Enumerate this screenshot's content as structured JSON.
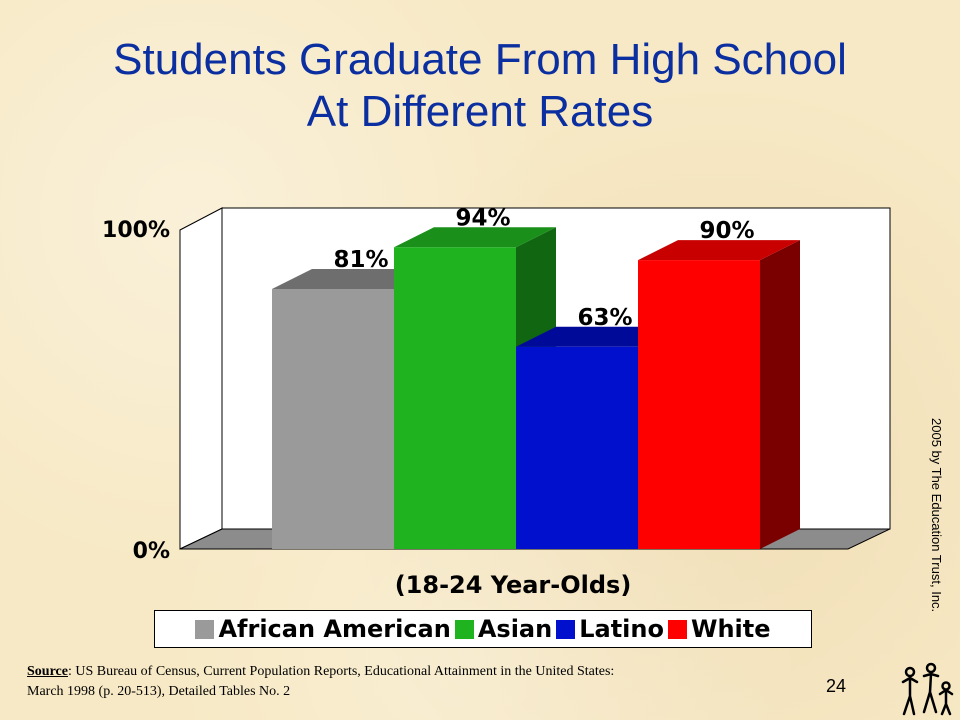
{
  "slide": {
    "title_line1": "Students Graduate From High School",
    "title_line2": "At Different Rates",
    "page_number": "24",
    "copyright": "2005  by The Education Trust, Inc.",
    "source_label": "Source",
    "source_text": ": US Bureau of Census, Current Population Reports, Educational Attainment in the United States:",
    "source_text_line2": "March 1998 (p. 20-513), Detailed Tables No. 2",
    "logo_icon": "education-trust-logo-icon"
  },
  "chart_data": {
    "type": "bar",
    "style": "3d",
    "categories": [
      "African American",
      "Asian",
      "Latino",
      "White"
    ],
    "values": [
      81,
      94,
      63,
      90
    ],
    "data_labels": [
      "81%",
      "94%",
      "63%",
      "90%"
    ],
    "colors": [
      "#9a9a9a",
      "#1fb31f",
      "#0010cc",
      "#ff0000"
    ],
    "top_colors": [
      "#6e6e6e",
      "#1a8f1a",
      "#000a99",
      "#c80000"
    ],
    "side_colors": [
      "#7a7a7a",
      "#116611",
      "#00087a",
      "#7a0000"
    ],
    "title": "Students Graduate From High School At Different Rates",
    "xlabel": "(18-24 Year-Olds)",
    "ylabel": "",
    "ylim": [
      0,
      100
    ],
    "y_ticks": [
      "0%",
      "100%"
    ],
    "grid": false,
    "legend": {
      "position": "bottom",
      "entries": [
        "African American",
        "Asian",
        "Latino",
        "White"
      ]
    }
  }
}
